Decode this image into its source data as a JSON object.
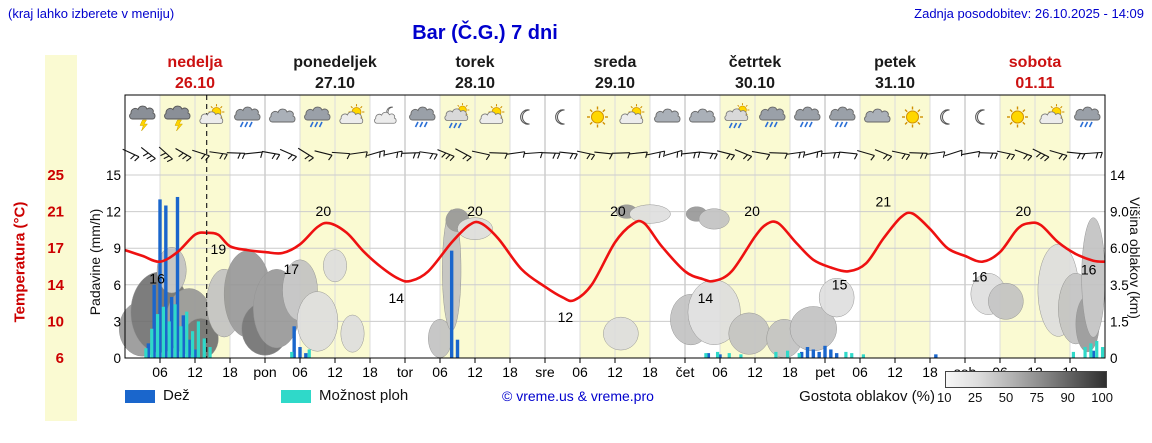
{
  "header": {
    "hint": "(kraj lahko izberete v meniju)",
    "updated": "Zadnja posodobitev: 26.10.2025 - 14:09",
    "title": "Bar (Č.G.) 7 dni"
  },
  "days": [
    {
      "name": "nedelja",
      "date": "26.10",
      "red": true
    },
    {
      "name": "ponedeljek",
      "date": "27.10",
      "red": false
    },
    {
      "name": "torek",
      "date": "28.10",
      "red": false
    },
    {
      "name": "sreda",
      "date": "29.10",
      "red": false
    },
    {
      "name": "četrtek",
      "date": "30.10",
      "red": false
    },
    {
      "name": "petek",
      "date": "31.10",
      "red": false
    },
    {
      "name": "sobota",
      "date": "01.11",
      "red": true
    }
  ],
  "axes": {
    "temp_label": "Temperatura (°C)",
    "precip_label": "Padavine (mm/h)",
    "cloud_label": "Višina oblakov (km)",
    "temp_ticks": [
      6,
      10,
      14,
      17,
      21,
      25
    ],
    "precip_ticks": [
      0,
      3,
      6,
      9,
      12,
      15
    ],
    "cloud_ticks": [
      "0",
      "1.5",
      "3.5",
      "6.0",
      "9.0",
      "14"
    ],
    "time_ticks": [
      "06",
      "12",
      "18"
    ],
    "day_abbrs": [
      "pon",
      "tor",
      "sre",
      "čet",
      "pet",
      "sob"
    ]
  },
  "legend": {
    "rain": "Dež",
    "showers": "Možnost ploh",
    "copyright": "© vreme.us & vreme.pro",
    "cloud_density": "Gostota oblakov (%)",
    "density_ticks": [
      "10",
      "25",
      "50",
      "75",
      "90",
      "100"
    ]
  },
  "colors": {
    "accent_blue": "#0000cd",
    "red_label": "#cc0000",
    "temp_line": "#ee1111",
    "rain": "#1a66cc",
    "showers": "#2fd9c9",
    "day_band": "#fafad2",
    "cloud_shades": {
      "25": "#dedede",
      "50": "#c2c2c2",
      "75": "#969696",
      "90": "#6f6f6f"
    }
  },
  "chart_data": {
    "type": "line+bar meteogram",
    "x_axis": {
      "unit": "hours",
      "start": "ned 26.10 00:00",
      "hours_total": 168,
      "tick_hours": [
        6,
        12,
        18
      ]
    },
    "temp_axis": {
      "min": 6,
      "max": 25
    },
    "precip_axis": {
      "min": 0,
      "max": 15
    },
    "cloud_axis_km": [
      0,
      1.5,
      3.5,
      6,
      9,
      14
    ],
    "now_hour": 14,
    "temperature": {
      "points": [
        [
          0,
          17.2
        ],
        [
          3,
          16.6
        ],
        [
          6,
          16
        ],
        [
          9,
          17
        ],
        [
          12,
          18.8
        ],
        [
          14,
          19
        ],
        [
          16,
          18.8
        ],
        [
          18,
          17.6
        ],
        [
          21,
          17.2
        ],
        [
          24,
          17
        ],
        [
          27,
          16.9
        ],
        [
          30,
          17.8
        ],
        [
          33,
          19.6
        ],
        [
          35,
          20
        ],
        [
          38,
          19
        ],
        [
          41,
          17
        ],
        [
          44,
          15.4
        ],
        [
          47,
          14.2
        ],
        [
          49,
          14
        ],
        [
          52,
          15
        ],
        [
          56,
          18
        ],
        [
          59,
          19.8
        ],
        [
          61,
          20
        ],
        [
          64,
          18.4
        ],
        [
          68,
          15.2
        ],
        [
          72,
          13.4
        ],
        [
          75,
          12.3
        ],
        [
          77,
          12
        ],
        [
          80,
          13.6
        ],
        [
          84,
          18
        ],
        [
          87,
          19.9
        ],
        [
          89,
          20
        ],
        [
          92,
          17.6
        ],
        [
          96,
          15
        ],
        [
          99,
          14.2
        ],
        [
          101,
          14
        ],
        [
          104,
          15
        ],
        [
          108,
          18.6
        ],
        [
          110,
          19.9
        ],
        [
          112,
          20
        ],
        [
          115,
          18
        ],
        [
          118,
          16.2
        ],
        [
          121,
          15.4
        ],
        [
          124,
          15
        ],
        [
          127,
          15.8
        ],
        [
          130,
          18.4
        ],
        [
          133,
          20.6
        ],
        [
          135,
          21
        ],
        [
          138,
          19.4
        ],
        [
          141,
          17.4
        ],
        [
          144,
          16.6
        ],
        [
          147,
          16
        ],
        [
          150,
          17
        ],
        [
          153,
          19.4
        ],
        [
          155,
          20
        ],
        [
          157,
          19.8
        ],
        [
          160,
          18
        ],
        [
          163,
          16.8
        ],
        [
          166,
          16.1
        ],
        [
          168,
          16
        ]
      ],
      "labels": [
        [
          5.5,
          16,
          14
        ],
        [
          16,
          19,
          13
        ],
        [
          28.5,
          17,
          14
        ],
        [
          34,
          20,
          -7
        ],
        [
          46.5,
          14,
          14
        ],
        [
          60,
          20,
          -7
        ],
        [
          75.5,
          12,
          14
        ],
        [
          84.5,
          20,
          -7
        ],
        [
          99.5,
          14,
          14
        ],
        [
          107.5,
          20,
          -7
        ],
        [
          122.5,
          15,
          10
        ],
        [
          130,
          21,
          -7
        ],
        [
          146.5,
          16,
          12
        ],
        [
          154,
          20,
          -7
        ],
        [
          165.2,
          16,
          5
        ]
      ]
    },
    "rain_mm_h": [
      [
        4,
        1.2
      ],
      [
        5,
        6
      ],
      [
        6,
        13
      ],
      [
        7,
        12.5
      ],
      [
        8,
        5
      ],
      [
        9,
        13.2
      ],
      [
        10,
        3.5
      ],
      [
        11,
        1.5
      ],
      [
        12,
        0.7
      ],
      [
        29,
        2.6
      ],
      [
        30,
        0.9
      ],
      [
        31,
        0.4
      ],
      [
        56,
        8.8
      ],
      [
        57,
        1.5
      ],
      [
        100,
        0.4
      ],
      [
        102,
        0.3
      ],
      [
        116,
        0.5
      ],
      [
        117,
        0.9
      ],
      [
        118,
        0.7
      ],
      [
        119,
        0.5
      ],
      [
        120,
        1.0
      ],
      [
        121,
        0.7
      ],
      [
        122,
        0.4
      ],
      [
        139,
        0.3
      ],
      [
        166,
        0.6
      ]
    ],
    "showers_mm_h": [
      [
        3,
        0.8
      ],
      [
        4,
        2.4
      ],
      [
        5,
        3.6
      ],
      [
        6,
        4.2
      ],
      [
        7,
        3.0
      ],
      [
        8,
        4.4
      ],
      [
        9,
        2.6
      ],
      [
        10,
        3.8
      ],
      [
        11,
        2.2
      ],
      [
        12,
        3.0
      ],
      [
        13,
        1.6
      ],
      [
        14,
        0.9
      ],
      [
        28,
        0.5
      ],
      [
        31,
        0.7
      ],
      [
        99,
        0.4
      ],
      [
        101,
        0.5
      ],
      [
        103,
        0.4
      ],
      [
        105,
        0.3
      ],
      [
        111,
        0.5
      ],
      [
        113,
        0.6
      ],
      [
        115,
        0.4
      ],
      [
        123,
        0.5
      ],
      [
        124,
        0.4
      ],
      [
        126,
        0.3
      ],
      [
        162,
        0.5
      ],
      [
        164,
        0.9
      ],
      [
        165,
        1.2
      ],
      [
        166,
        1.4
      ],
      [
        167,
        0.9
      ]
    ],
    "clouds": [
      [
        3,
        1.2,
        4,
        1.3,
        75
      ],
      [
        6,
        2.0,
        5,
        2.0,
        90
      ],
      [
        8,
        4.5,
        2.5,
        1.5,
        50
      ],
      [
        11,
        1.5,
        4,
        1.6,
        75
      ],
      [
        13,
        0.8,
        3,
        0.9,
        90
      ],
      [
        17,
        2.5,
        3,
        1.8,
        50
      ],
      [
        21,
        3.0,
        4,
        2.4,
        75
      ],
      [
        24,
        1.2,
        4,
        1.2,
        90
      ],
      [
        26,
        2.2,
        4,
        2.0,
        75
      ],
      [
        30,
        3.2,
        3,
        1.8,
        50
      ],
      [
        33,
        1.5,
        3.5,
        1.4,
        25
      ],
      [
        36,
        4.8,
        2,
        1.1,
        25
      ],
      [
        39,
        1.0,
        2,
        0.8,
        25
      ],
      [
        54,
        0.8,
        2,
        0.8,
        50
      ],
      [
        56,
        4.5,
        1.6,
        3.8,
        50
      ],
      [
        57,
        8.3,
        2,
        1.0,
        75
      ],
      [
        60,
        7.6,
        3,
        0.9,
        25
      ],
      [
        85,
        1.0,
        3,
        0.7,
        25
      ],
      [
        86,
        9.0,
        1.8,
        0.7,
        75
      ],
      [
        90,
        8.8,
        3.5,
        0.9,
        25
      ],
      [
        97,
        1.6,
        3.5,
        1.2,
        50
      ],
      [
        98,
        8.8,
        1.8,
        0.7,
        75
      ],
      [
        101,
        8.4,
        2.6,
        0.9,
        50
      ],
      [
        101,
        2.0,
        4.5,
        1.6,
        25
      ],
      [
        107,
        1.0,
        3.5,
        0.9,
        50
      ],
      [
        113,
        0.8,
        3,
        0.8,
        50
      ],
      [
        118,
        1.2,
        4,
        1.0,
        50
      ],
      [
        122,
        2.8,
        3,
        1.1,
        25
      ],
      [
        148,
        3.0,
        3,
        1.2,
        25
      ],
      [
        151,
        2.6,
        3,
        1.0,
        50
      ],
      [
        160,
        3.2,
        3.5,
        2.6,
        25
      ],
      [
        163,
        2.2,
        3,
        1.8,
        50
      ],
      [
        165,
        1.4,
        2,
        1.3,
        75
      ],
      [
        166,
        4.0,
        2,
        3.6,
        50
      ]
    ],
    "icons": [
      [
        3,
        "storm"
      ],
      [
        9,
        "storm"
      ],
      [
        15,
        "partly"
      ],
      [
        21,
        "rain"
      ],
      [
        27,
        "cloud"
      ],
      [
        33,
        "rain"
      ],
      [
        39,
        "partly"
      ],
      [
        45,
        "moon-cloud"
      ],
      [
        51,
        "rain"
      ],
      [
        57,
        "rain-sun"
      ],
      [
        63,
        "partly"
      ],
      [
        69,
        "moon"
      ],
      [
        75,
        "moon"
      ],
      [
        81,
        "sun"
      ],
      [
        87,
        "partly"
      ],
      [
        93,
        "cloud"
      ],
      [
        99,
        "cloud"
      ],
      [
        105,
        "rain-sun"
      ],
      [
        111,
        "rain"
      ],
      [
        117,
        "rain"
      ],
      [
        123,
        "rain"
      ],
      [
        129,
        "cloud"
      ],
      [
        135,
        "sun"
      ],
      [
        141,
        "moon"
      ],
      [
        147,
        "moon"
      ],
      [
        153,
        "sun"
      ],
      [
        159,
        "partly"
      ],
      [
        165,
        "rain"
      ]
    ],
    "wind": [
      [
        1,
        25,
        2
      ],
      [
        4,
        38,
        3
      ],
      [
        7,
        42,
        3
      ],
      [
        10,
        30,
        3
      ],
      [
        13,
        18,
        2
      ],
      [
        16,
        8,
        2
      ],
      [
        19,
        2,
        2
      ],
      [
        22,
        -6,
        1
      ],
      [
        25,
        10,
        2
      ],
      [
        28,
        24,
        2
      ],
      [
        31,
        32,
        2
      ],
      [
        34,
        14,
        1
      ],
      [
        37,
        4,
        1
      ],
      [
        40,
        -8,
        1
      ],
      [
        43,
        -16,
        2
      ],
      [
        46,
        -12,
        2
      ],
      [
        49,
        -2,
        2
      ],
      [
        52,
        8,
        2
      ],
      [
        55,
        22,
        3
      ],
      [
        58,
        28,
        2
      ],
      [
        61,
        12,
        1
      ],
      [
        64,
        2,
        1
      ],
      [
        67,
        -8,
        1
      ],
      [
        70,
        -4,
        1
      ],
      [
        73,
        2,
        2
      ],
      [
        76,
        6,
        2
      ],
      [
        79,
        12,
        2
      ],
      [
        82,
        6,
        1
      ],
      [
        85,
        -2,
        1
      ],
      [
        88,
        -6,
        1
      ],
      [
        91,
        -12,
        2
      ],
      [
        94,
        -16,
        2
      ],
      [
        97,
        -6,
        2
      ],
      [
        100,
        6,
        2
      ],
      [
        103,
        14,
        2
      ],
      [
        106,
        22,
        2
      ],
      [
        109,
        10,
        1
      ],
      [
        112,
        2,
        1
      ],
      [
        115,
        -8,
        2
      ],
      [
        118,
        -14,
        2
      ],
      [
        121,
        -4,
        2
      ],
      [
        124,
        6,
        1
      ],
      [
        127,
        16,
        1
      ],
      [
        130,
        22,
        2
      ],
      [
        133,
        12,
        2
      ],
      [
        136,
        2,
        2
      ],
      [
        139,
        -8,
        1
      ],
      [
        142,
        -18,
        1
      ],
      [
        145,
        -10,
        1
      ],
      [
        148,
        2,
        2
      ],
      [
        151,
        12,
        2
      ],
      [
        154,
        20,
        2
      ],
      [
        157,
        26,
        3
      ],
      [
        160,
        16,
        2
      ],
      [
        163,
        6,
        2
      ],
      [
        166,
        -4,
        2
      ]
    ]
  }
}
